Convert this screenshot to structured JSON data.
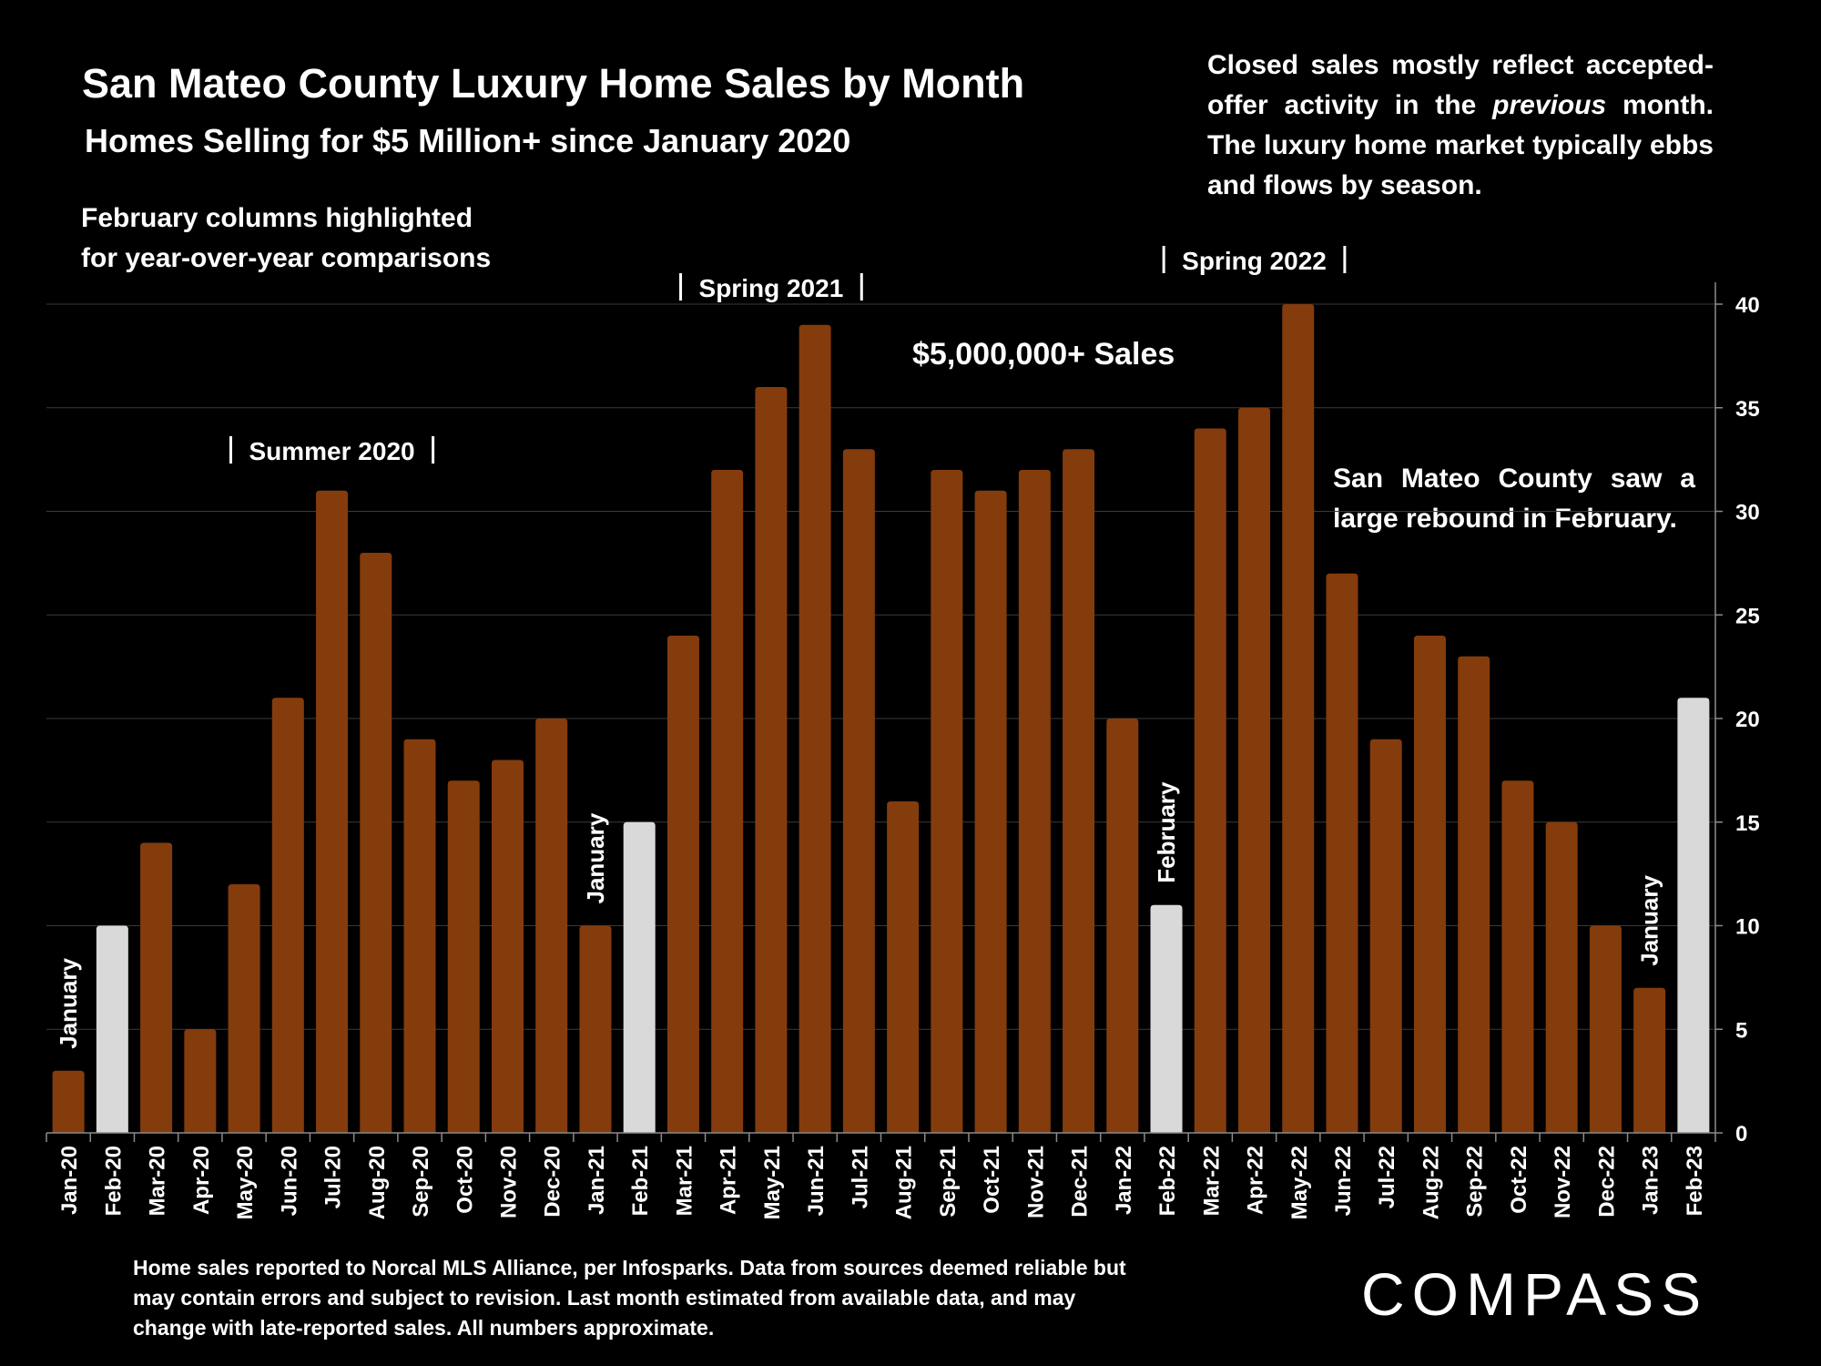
{
  "header": {
    "title": "San Mateo County Luxury Home Sales by Month",
    "subtitle": "Homes Selling for $5 Million+ since January 2020"
  },
  "notes": {
    "february_highlight": [
      "February columns highlighted",
      "for year-over-year comparisons"
    ],
    "seasonality": "Closed sales mostly reflect accepted-offer activity in the previous month. The luxury home market typically ebbs and flows by season.",
    "seasonality_parts": [
      "Closed sales mostly reflect accepted-offer activity in the ",
      "previous",
      " month. The luxury home market typically ebbs and flows by season."
    ],
    "rebound": "San Mateo County saw a large rebound in February."
  },
  "season_brackets": [
    {
      "label": "Summer 2020",
      "from": "Jun-20",
      "to": "Aug-20"
    },
    {
      "label": "Spring 2021",
      "from": "Apr-21",
      "to": "Jun-21"
    },
    {
      "label": "Spring 2022",
      "from": "Mar-22",
      "to": "May-22"
    }
  ],
  "footer": "Home sales reported to Norcal MLS Alliance, per Infosparks. Data from sources deemed reliable but may contain errors and subject to revision.  Last month estimated from available data, and may change with late-reported sales. All numbers approximate.",
  "brand": {
    "logo_text": "COMPASS"
  },
  "colors": {
    "bar": "#843C0C",
    "highlight": "#D9D9D9",
    "background": "#000000",
    "grid": "#3a3a3a",
    "text": "#FFFFFF"
  },
  "chart_data": {
    "type": "bar",
    "series_label": "$5,000,000+ Sales",
    "categories": [
      "Jan-20",
      "Feb-20",
      "Mar-20",
      "Apr-20",
      "May-20",
      "Jun-20",
      "Jul-20",
      "Aug-20",
      "Sep-20",
      "Oct-20",
      "Nov-20",
      "Dec-20",
      "Jan-21",
      "Feb-21",
      "Mar-21",
      "Apr-21",
      "May-21",
      "Jun-21",
      "Jul-21",
      "Aug-21",
      "Sep-21",
      "Oct-21",
      "Nov-21",
      "Dec-21",
      "Jan-22",
      "Feb-22",
      "Mar-22",
      "Apr-22",
      "May-22",
      "Jun-22",
      "Jul-22",
      "Aug-22",
      "Sep-22",
      "Oct-22",
      "Nov-22",
      "Dec-22",
      "Jan-23",
      "Feb-23"
    ],
    "values": [
      3,
      10,
      14,
      5,
      12,
      21,
      31,
      28,
      19,
      17,
      18,
      20,
      10,
      15,
      24,
      32,
      36,
      39,
      33,
      16,
      32,
      31,
      32,
      33,
      20,
      11,
      34,
      35,
      40,
      27,
      19,
      24,
      23,
      17,
      15,
      10,
      7,
      21
    ],
    "highlighted": [
      "Feb-20",
      "Feb-21",
      "Feb-22",
      "Feb-23"
    ],
    "annotations": [
      {
        "text": "January",
        "at": "Jan-20",
        "orientation": "vertical"
      },
      {
        "text": "January",
        "at": "Jan-21",
        "orientation": "vertical"
      },
      {
        "text": "February",
        "at": "Feb-22",
        "orientation": "vertical"
      },
      {
        "text": "January",
        "at": "Jan-23",
        "orientation": "vertical"
      }
    ],
    "yaxis": {
      "side": "right",
      "ticks": [
        0,
        5,
        10,
        15,
        20,
        25,
        30,
        35,
        40
      ]
    },
    "ylim": [
      0,
      40
    ],
    "grid": true,
    "legend": "none"
  }
}
